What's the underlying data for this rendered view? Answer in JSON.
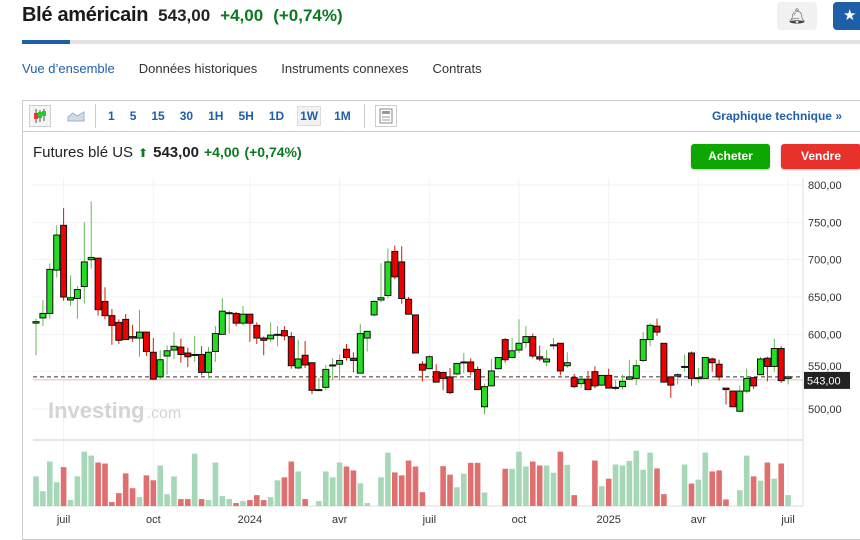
{
  "header": {
    "title": "Blé américain",
    "price": "543,00",
    "change": "+4,00",
    "change_pct": "(+0,74%)"
  },
  "nav": {
    "tabs": [
      "Vue d’ensemble",
      "Données historiques",
      "Instruments connexes",
      "Contrats"
    ]
  },
  "toolbar": {
    "intervals": [
      "1",
      "5",
      "15",
      "30",
      "1H",
      "5H",
      "1D",
      "1W",
      "1M"
    ],
    "selected": "1W",
    "technical_link": "Graphique technique »"
  },
  "chart_header": {
    "name": "Futures blé US",
    "price": "543,00",
    "change": "+4,00",
    "change_pct": "(+0,74%)",
    "buy": "Acheter",
    "sell": "Vendre"
  },
  "colors": {
    "up": "#22dd22",
    "down": "#ee0000",
    "vol_up": "#a6d8b8",
    "vol_down": "#e07070",
    "accent": "#1f5fa8"
  },
  "chart_data": {
    "type": "candlestick",
    "watermark": "Investing.com",
    "ylim": [
      450,
      810
    ],
    "y_ticks": [
      "800,00",
      "750,00",
      "700,00",
      "650,00",
      "600,00",
      "550,00",
      "500,00"
    ],
    "y_tick_values": [
      800,
      750,
      700,
      650,
      600,
      550,
      500
    ],
    "last_price_label": "543,00",
    "last_price": 543,
    "x_labels": [
      {
        "label": "juil",
        "index": 5
      },
      {
        "label": "oct",
        "index": 18
      },
      {
        "label": "2024",
        "index": 32
      },
      {
        "label": "avr",
        "index": 45
      },
      {
        "label": "juil",
        "index": 58
      },
      {
        "label": "oct",
        "index": 71
      },
      {
        "label": "2025",
        "index": 84
      },
      {
        "label": "avr",
        "index": 97
      },
      {
        "label": "juil",
        "index": 110
      }
    ],
    "ohlc": [
      [
        615,
        621,
        572,
        617
      ],
      [
        622,
        646,
        611,
        628
      ],
      [
        628,
        695,
        621,
        687
      ],
      [
        686,
        746,
        676,
        733
      ],
      [
        746,
        769,
        645,
        650
      ],
      [
        646,
        679,
        638,
        649
      ],
      [
        648,
        665,
        621,
        660
      ],
      [
        664,
        750,
        641,
        697
      ],
      [
        700,
        778,
        688,
        703
      ],
      [
        702,
        702,
        625,
        633
      ],
      [
        644,
        663,
        620,
        625
      ],
      [
        625,
        634,
        586,
        612
      ],
      [
        616,
        620,
        587,
        592
      ],
      [
        620,
        627,
        593,
        593
      ],
      [
        597,
        613,
        590,
        595
      ],
      [
        595,
        633,
        570,
        603
      ],
      [
        603,
        603,
        571,
        577
      ],
      [
        576,
        595,
        539,
        540
      ],
      [
        543,
        579,
        540,
        566
      ],
      [
        571,
        585,
        546,
        578
      ],
      [
        579,
        603,
        567,
        584
      ],
      [
        583,
        594,
        562,
        573
      ],
      [
        575,
        582,
        556,
        570
      ],
      [
        573,
        598,
        563,
        573
      ],
      [
        573,
        584,
        545,
        549
      ],
      [
        549,
        583,
        541,
        576
      ],
      [
        577,
        611,
        563,
        601
      ],
      [
        600,
        648,
        600,
        631
      ],
      [
        629,
        632,
        601,
        629
      ],
      [
        628,
        630,
        611,
        615
      ],
      [
        615,
        638,
        612,
        627
      ],
      [
        627,
        627,
        590,
        615
      ],
      [
        612,
        616,
        587,
        595
      ],
      [
        595,
        597,
        572,
        592
      ],
      [
        594,
        616,
        590,
        599
      ],
      [
        600,
        611,
        584,
        600
      ],
      [
        605,
        611,
        592,
        598
      ],
      [
        597,
        603,
        554,
        558
      ],
      [
        555,
        593,
        553,
        567
      ],
      [
        572,
        591,
        555,
        559
      ],
      [
        562,
        562,
        520,
        525
      ],
      [
        526,
        542,
        524,
        526
      ],
      [
        529,
        559,
        525,
        553
      ],
      [
        559,
        568,
        539,
        559
      ],
      [
        560,
        573,
        539,
        565
      ],
      [
        580,
        587,
        565,
        569
      ],
      [
        568,
        576,
        549,
        565
      ],
      [
        548,
        614,
        548,
        601
      ],
      [
        595,
        604,
        577,
        604
      ],
      [
        626,
        646,
        624,
        644
      ],
      [
        646,
        695,
        643,
        649
      ],
      [
        652,
        715,
        648,
        697
      ],
      [
        711,
        719,
        674,
        677
      ],
      [
        697,
        718,
        641,
        648
      ],
      [
        647,
        650,
        627,
        627
      ],
      [
        626,
        626,
        575,
        575
      ],
      [
        560,
        564,
        537,
        552
      ],
      [
        554,
        572,
        554,
        570
      ],
      [
        550,
        560,
        536,
        536
      ],
      [
        549,
        549,
        525,
        541
      ],
      [
        543,
        555,
        520,
        522
      ],
      [
        547,
        562,
        545,
        561
      ],
      [
        563,
        575,
        548,
        563
      ],
      [
        563,
        568,
        545,
        550
      ],
      [
        553,
        557,
        526,
        526
      ],
      [
        503,
        534,
        493,
        530
      ],
      [
        531,
        567,
        531,
        551
      ],
      [
        554,
        569,
        553,
        569
      ],
      [
        593,
        595,
        562,
        566
      ],
      [
        569,
        595,
        569,
        578
      ],
      [
        579,
        620,
        575,
        588
      ],
      [
        589,
        611,
        582,
        597
      ],
      [
        597,
        601,
        568,
        571
      ],
      [
        570,
        585,
        564,
        567
      ],
      [
        563,
        579,
        557,
        567
      ],
      [
        586,
        595,
        580,
        586
      ],
      [
        588,
        588,
        545,
        551
      ],
      [
        558,
        576,
        555,
        562
      ],
      [
        542,
        547,
        528,
        530
      ],
      [
        534,
        543,
        528,
        540
      ],
      [
        540,
        551,
        526,
        526
      ],
      [
        550,
        557,
        528,
        531
      ],
      [
        532,
        545,
        532,
        545
      ],
      [
        545,
        554,
        528,
        528
      ],
      [
        529,
        539,
        525,
        529
      ],
      [
        530,
        546,
        526,
        537
      ],
      [
        540,
        566,
        539,
        543
      ],
      [
        541,
        566,
        532,
        558
      ],
      [
        565,
        603,
        563,
        593
      ],
      [
        593,
        615,
        584,
        612
      ],
      [
        611,
        621,
        598,
        603
      ],
      [
        588,
        588,
        536,
        536
      ],
      [
        543,
        543,
        515,
        532
      ],
      [
        544,
        548,
        533,
        546
      ],
      [
        557,
        573,
        550,
        557
      ],
      [
        575,
        577,
        531,
        541
      ],
      [
        542,
        555,
        535,
        542
      ],
      [
        541,
        569,
        541,
        569
      ],
      [
        567,
        569,
        550,
        562
      ],
      [
        560,
        566,
        538,
        543
      ],
      [
        528,
        528,
        506,
        526
      ],
      [
        524,
        524,
        503,
        503
      ],
      [
        497,
        531,
        497,
        524
      ],
      [
        524,
        554,
        521,
        541
      ],
      [
        542,
        542,
        527,
        531
      ],
      [
        546,
        570,
        546,
        567
      ],
      [
        568,
        570,
        537,
        557
      ],
      [
        557,
        594,
        550,
        581
      ],
      [
        581,
        584,
        535,
        538
      ],
      [
        541,
        545,
        533,
        543
      ]
    ],
    "volume": [
      90,
      45,
      135,
      72,
      118,
      18,
      90,
      165,
      153,
      132,
      129,
      12,
      39,
      99,
      54,
      27,
      93,
      78,
      123,
      36,
      90,
      21,
      21,
      159,
      21,
      18,
      132,
      30,
      21,
      9,
      15,
      18,
      33,
      18,
      27,
      78,
      87,
      135,
      105,
      21,
      0,
      15,
      105,
      87,
      132,
      120,
      108,
      69,
      9,
      0,
      87,
      162,
      102,
      93,
      138,
      120,
      42,
      0,
      0,
      121,
      95,
      57,
      98,
      131,
      131,
      41,
      0,
      0,
      113,
      113,
      165,
      120,
      135,
      123,
      123,
      101,
      165,
      125,
      33,
      0,
      0,
      138,
      60,
      83,
      126,
      123,
      137,
      168,
      110,
      162,
      114,
      36,
      0,
      0,
      126,
      68,
      80,
      162,
      105,
      108,
      20,
      0,
      48,
      153,
      90,
      77,
      132,
      83,
      129,
      33
    ]
  }
}
